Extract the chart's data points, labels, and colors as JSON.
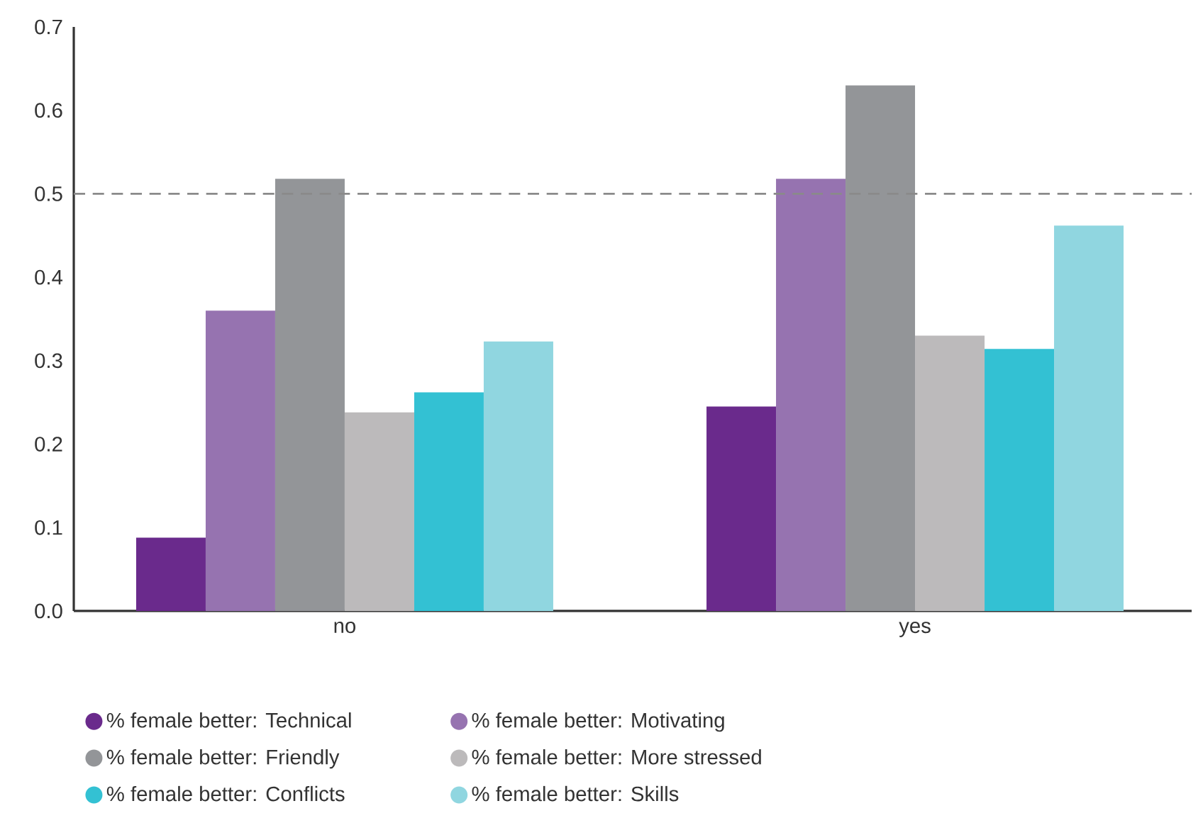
{
  "chart_data": {
    "type": "bar",
    "categories": [
      "no",
      "yes"
    ],
    "series": [
      {
        "name": "% female better: Technical",
        "color": "#6a2a8c",
        "values": [
          0.088,
          0.245
        ]
      },
      {
        "name": "% female better: Motivating",
        "color": "#9673b0",
        "values": [
          0.36,
          0.518
        ]
      },
      {
        "name": "% female better: Friendly",
        "color": "#939598",
        "values": [
          0.518,
          0.63
        ]
      },
      {
        "name": "% female better: More stressed",
        "color": "#bcbabb",
        "values": [
          0.238,
          0.33
        ]
      },
      {
        "name": "% female better: Conflicts",
        "color": "#33c1d3",
        "values": [
          0.262,
          0.314
        ]
      },
      {
        "name": "% female better: Skills",
        "color": "#90d6e0",
        "values": [
          0.323,
          0.462
        ]
      }
    ],
    "ylim": [
      0,
      0.7
    ],
    "yticks": [
      {
        "value": 0,
        "label": "0.0"
      },
      0.1,
      0.2,
      0.3,
      0.4,
      0.5,
      0.6,
      0.7
    ],
    "ref_lines": [
      {
        "axis": "y",
        "value": 0.5,
        "color": "#8a8a8a",
        "line_style": "dashed"
      }
    ],
    "grid": false,
    "legend": "bottom",
    "marker": "circle"
  }
}
